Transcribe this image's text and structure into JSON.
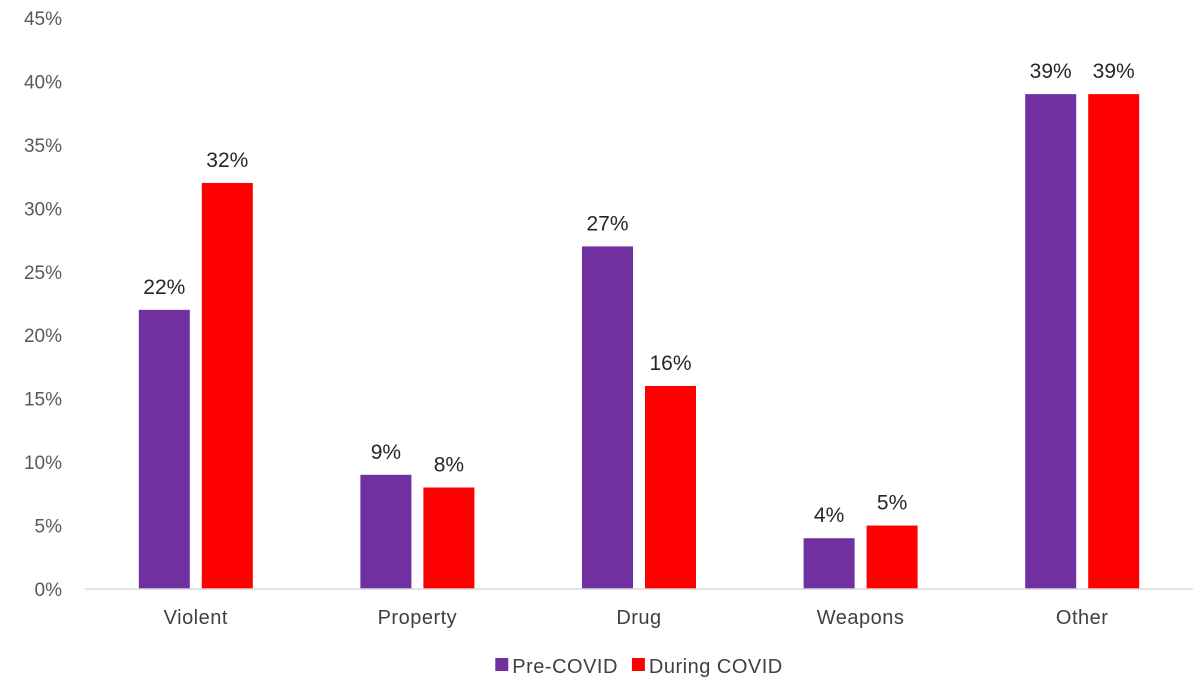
{
  "chart_data": {
    "type": "bar",
    "categories": [
      "Violent",
      "Property",
      "Drug",
      "Weapons",
      "Other"
    ],
    "series": [
      {
        "name": "Pre-COVID",
        "color": "#7030A0",
        "values": [
          22,
          9,
          27,
          4,
          39
        ],
        "labels": [
          "22%",
          "9%",
          "27%",
          "4%",
          "39%"
        ]
      },
      {
        "name": "During COVID",
        "color": "#FF0000",
        "values": [
          32,
          8,
          16,
          5,
          39
        ],
        "labels": [
          "32%",
          "8%",
          "16%",
          "5%",
          "39%"
        ]
      }
    ],
    "ylim": [
      0,
      45
    ],
    "yticks": [
      0,
      5,
      10,
      15,
      20,
      25,
      30,
      35,
      40,
      45
    ],
    "ytick_labels": [
      "0%",
      "5%",
      "10%",
      "15%",
      "20%",
      "25%",
      "30%",
      "35%",
      "40%",
      "45%"
    ],
    "grid": false,
    "legend_position": "bottom"
  }
}
